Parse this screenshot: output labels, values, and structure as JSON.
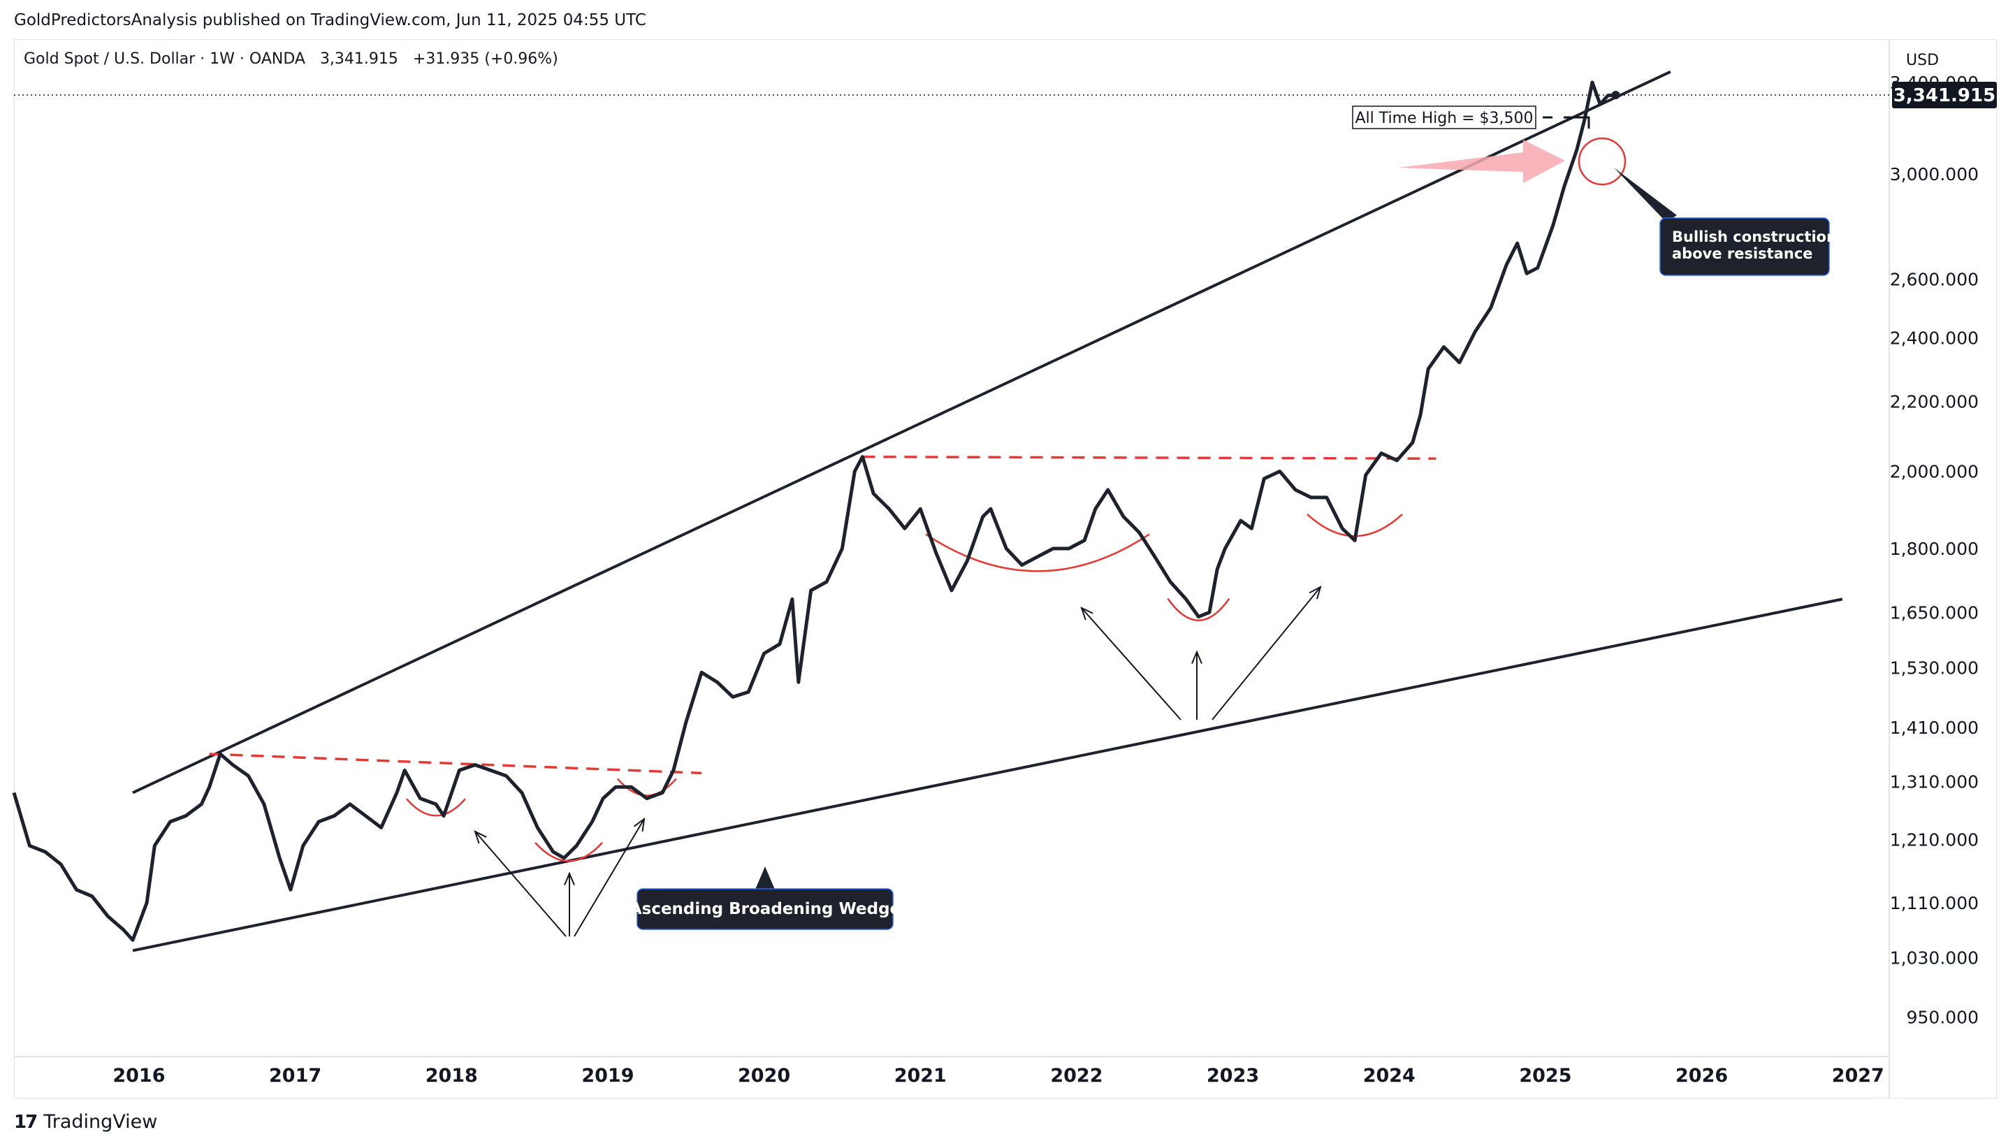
{
  "header": {
    "publisher": "GoldPredictorsAnalysis published on TradingView.com, Jun 11, 2025 04:55 UTC",
    "symbol": "Gold Spot / U.S. Dollar · 1W · OANDA",
    "last": "3,341.915",
    "change": "+31.935 (+0.96%)"
  },
  "currency": "USD",
  "price_tag": "3,341.915",
  "footer": {
    "brand": "TradingView"
  },
  "chart_data": {
    "type": "line",
    "title": "Gold Spot / U.S. Dollar · 1W · OANDA",
    "y_scale": "log",
    "ylim": [
      900,
      3600
    ],
    "xlim": [
      2015.2,
      2027.2
    ],
    "x_ticks": [
      "2016",
      "2017",
      "2018",
      "2019",
      "2020",
      "2021",
      "2022",
      "2023",
      "2024",
      "2025",
      "2026",
      "2027"
    ],
    "y_ticks": [
      "950.000",
      "1,030.000",
      "1,110.000",
      "1,210.000",
      "1,310.000",
      "1,410.000",
      "1,530.000",
      "1,650.000",
      "1,800.000",
      "2,000.000",
      "2,200.000",
      "2,400.000",
      "2,600.000",
      "3,000.000",
      "3,400.000"
    ],
    "y_tick_values": [
      950,
      1030,
      1110,
      1210,
      1310,
      1410,
      1530,
      1650,
      1800,
      2000,
      2200,
      2400,
      2600,
      3000,
      3400
    ],
    "series": [
      {
        "values": [
          [
            2015.2,
            1290
          ],
          [
            2015.3,
            1200
          ],
          [
            2015.4,
            1190
          ],
          [
            2015.5,
            1170
          ],
          [
            2015.6,
            1130
          ],
          [
            2015.7,
            1120
          ],
          [
            2015.8,
            1090
          ],
          [
            2015.9,
            1070
          ],
          [
            2015.96,
            1055
          ],
          [
            2016.05,
            1110
          ],
          [
            2016.1,
            1200
          ],
          [
            2016.2,
            1240
          ],
          [
            2016.3,
            1250
          ],
          [
            2016.4,
            1270
          ],
          [
            2016.45,
            1300
          ],
          [
            2016.52,
            1360
          ],
          [
            2016.6,
            1340
          ],
          [
            2016.7,
            1320
          ],
          [
            2016.8,
            1270
          ],
          [
            2016.9,
            1180
          ],
          [
            2016.97,
            1130
          ],
          [
            2017.05,
            1200
          ],
          [
            2017.15,
            1240
          ],
          [
            2017.25,
            1250
          ],
          [
            2017.35,
            1270
          ],
          [
            2017.45,
            1250
          ],
          [
            2017.55,
            1230
          ],
          [
            2017.65,
            1290
          ],
          [
            2017.7,
            1330
          ],
          [
            2017.8,
            1280
          ],
          [
            2017.9,
            1270
          ],
          [
            2017.95,
            1250
          ],
          [
            2018.05,
            1330
          ],
          [
            2018.15,
            1340
          ],
          [
            2018.25,
            1330
          ],
          [
            2018.35,
            1320
          ],
          [
            2018.45,
            1290
          ],
          [
            2018.55,
            1230
          ],
          [
            2018.65,
            1190
          ],
          [
            2018.72,
            1180
          ],
          [
            2018.8,
            1200
          ],
          [
            2018.9,
            1240
          ],
          [
            2018.97,
            1280
          ],
          [
            2019.05,
            1300
          ],
          [
            2019.15,
            1300
          ],
          [
            2019.25,
            1280
          ],
          [
            2019.35,
            1290
          ],
          [
            2019.42,
            1330
          ],
          [
            2019.5,
            1420
          ],
          [
            2019.6,
            1520
          ],
          [
            2019.7,
            1500
          ],
          [
            2019.8,
            1470
          ],
          [
            2019.9,
            1480
          ],
          [
            2020.0,
            1560
          ],
          [
            2020.1,
            1580
          ],
          [
            2020.18,
            1680
          ],
          [
            2020.22,
            1500
          ],
          [
            2020.3,
            1700
          ],
          [
            2020.4,
            1720
          ],
          [
            2020.5,
            1800
          ],
          [
            2020.58,
            2000
          ],
          [
            2020.63,
            2040
          ],
          [
            2020.7,
            1940
          ],
          [
            2020.8,
            1900
          ],
          [
            2020.9,
            1850
          ],
          [
            2021.0,
            1900
          ],
          [
            2021.1,
            1790
          ],
          [
            2021.2,
            1700
          ],
          [
            2021.3,
            1770
          ],
          [
            2021.4,
            1880
          ],
          [
            2021.45,
            1900
          ],
          [
            2021.55,
            1800
          ],
          [
            2021.65,
            1760
          ],
          [
            2021.75,
            1780
          ],
          [
            2021.85,
            1800
          ],
          [
            2021.95,
            1800
          ],
          [
            2022.05,
            1820
          ],
          [
            2022.12,
            1900
          ],
          [
            2022.2,
            1950
          ],
          [
            2022.3,
            1880
          ],
          [
            2022.4,
            1840
          ],
          [
            2022.5,
            1780
          ],
          [
            2022.6,
            1720
          ],
          [
            2022.7,
            1680
          ],
          [
            2022.78,
            1640
          ],
          [
            2022.85,
            1650
          ],
          [
            2022.9,
            1750
          ],
          [
            2022.95,
            1800
          ],
          [
            2023.05,
            1870
          ],
          [
            2023.12,
            1850
          ],
          [
            2023.2,
            1980
          ],
          [
            2023.3,
            2000
          ],
          [
            2023.4,
            1950
          ],
          [
            2023.5,
            1930
          ],
          [
            2023.6,
            1930
          ],
          [
            2023.7,
            1850
          ],
          [
            2023.78,
            1820
          ],
          [
            2023.85,
            1990
          ],
          [
            2023.95,
            2050
          ],
          [
            2024.05,
            2030
          ],
          [
            2024.15,
            2080
          ],
          [
            2024.2,
            2160
          ],
          [
            2024.25,
            2300
          ],
          [
            2024.35,
            2370
          ],
          [
            2024.45,
            2320
          ],
          [
            2024.55,
            2420
          ],
          [
            2024.65,
            2500
          ],
          [
            2024.75,
            2650
          ],
          [
            2024.82,
            2730
          ],
          [
            2024.88,
            2620
          ],
          [
            2024.95,
            2640
          ],
          [
            2025.05,
            2800
          ],
          [
            2025.12,
            2950
          ],
          [
            2025.2,
            3100
          ],
          [
            2025.25,
            3230
          ],
          [
            2025.3,
            3400
          ],
          [
            2025.35,
            3300
          ],
          [
            2025.4,
            3340
          ],
          [
            2025.45,
            3342
          ]
        ]
      }
    ],
    "annotations": {
      "wedge_label": "Ascending Broadening Wedge",
      "bullish_label_line1": "Bullish construction",
      "bullish_label_line2": "above resistance",
      "ath_label": "All Time High = $3,500"
    },
    "wedge_upper": [
      [
        2015.96,
        1290
      ],
      [
        2025.8,
        3450
      ]
    ],
    "wedge_lower": [
      [
        2015.96,
        1040
      ],
      [
        2026.9,
        1680
      ]
    ],
    "resistance_lines": [
      {
        "from": [
          2016.45,
          1360
        ],
        "to": [
          2019.6,
          1325
        ]
      },
      {
        "from": [
          2020.63,
          2040
        ],
        "to": [
          2024.3,
          2035
        ]
      }
    ]
  },
  "colors": {
    "price_line": "#1e222d",
    "trendline": "#1e222d",
    "resistance": "#e53935",
    "cup": "#e53935",
    "label_bg": "#1e222d",
    "label_border": "#2962ff",
    "arrow_pink": "#f7a8b0"
  }
}
